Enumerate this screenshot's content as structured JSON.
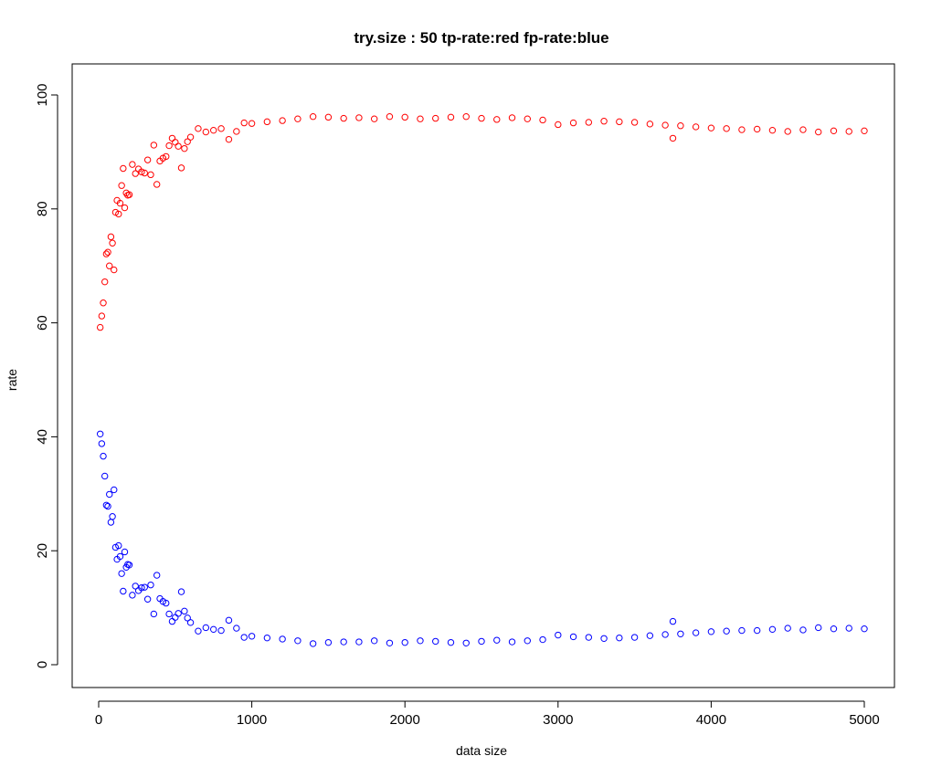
{
  "chart_data": {
    "type": "scatter",
    "title": "try.size :  50  tp-rate:red fp-rate:blue",
    "xlabel": "data size",
    "ylabel": "rate",
    "xlim": [
      0,
      5000
    ],
    "ylim": [
      0,
      100
    ],
    "x_ticks": [
      0,
      1000,
      2000,
      3000,
      4000,
      5000
    ],
    "y_ticks": [
      0,
      20,
      40,
      60,
      80,
      100
    ],
    "grid": false,
    "legend": "none",
    "x": [
      10,
      20,
      30,
      40,
      50,
      60,
      70,
      80,
      90,
      100,
      110,
      120,
      130,
      140,
      150,
      160,
      170,
      180,
      190,
      200,
      220,
      240,
      260,
      280,
      300,
      320,
      340,
      360,
      380,
      400,
      420,
      440,
      460,
      480,
      500,
      520,
      540,
      560,
      580,
      600,
      650,
      700,
      750,
      800,
      850,
      900,
      950,
      1000,
      1100,
      1200,
      1300,
      1400,
      1500,
      1600,
      1700,
      1800,
      1900,
      2000,
      2100,
      2200,
      2300,
      2400,
      2500,
      2600,
      2700,
      2800,
      2900,
      3000,
      3100,
      3200,
      3300,
      3400,
      3500,
      3600,
      3700,
      3750,
      3800,
      3900,
      4000,
      4100,
      4200,
      4300,
      4400,
      4500,
      4600,
      4700,
      4800,
      4900,
      5000
    ],
    "series": [
      {
        "color": "#ff0000",
        "marker": "open-circle",
        "values": [
          59.2,
          61.2,
          63.5,
          67.2,
          72.1,
          72.4,
          70.0,
          75.1,
          74.0,
          69.3,
          79.4,
          81.5,
          79.1,
          81.0,
          84.1,
          87.1,
          80.2,
          82.8,
          82.4,
          82.5,
          87.8,
          86.2,
          87.0,
          86.5,
          86.3,
          88.6,
          86.0,
          91.2,
          84.3,
          88.4,
          88.9,
          89.2,
          91.1,
          92.4,
          91.7,
          91.0,
          87.2,
          90.6,
          91.8,
          92.6,
          94.1,
          93.5,
          93.8,
          94.1,
          92.2,
          93.6,
          95.1,
          95.0,
          95.3,
          95.5,
          95.8,
          96.2,
          96.1,
          95.9,
          96.0,
          95.8,
          96.2,
          96.1,
          95.8,
          95.9,
          96.1,
          96.2,
          95.9,
          95.7,
          96.0,
          95.8,
          95.6,
          94.8,
          95.1,
          95.2,
          95.4,
          95.3,
          95.2,
          94.9,
          94.7,
          92.4,
          94.6,
          94.4,
          94.2,
          94.1,
          93.9,
          94.0,
          93.8,
          93.6,
          93.9,
          93.5,
          93.7,
          93.6,
          93.7
        ]
      },
      {
        "color": "#0000ff",
        "marker": "open-circle",
        "values": [
          40.5,
          38.8,
          36.6,
          33.1,
          28.0,
          27.8,
          29.9,
          25.0,
          26.0,
          30.7,
          20.6,
          18.5,
          20.9,
          19.0,
          16.0,
          12.9,
          19.8,
          17.1,
          17.6,
          17.5,
          12.2,
          13.8,
          13.0,
          13.5,
          13.6,
          11.5,
          14.0,
          8.9,
          15.7,
          11.6,
          11.1,
          10.8,
          8.9,
          7.6,
          8.3,
          9.0,
          12.8,
          9.4,
          8.2,
          7.4,
          5.9,
          6.5,
          6.2,
          6.0,
          7.8,
          6.4,
          4.8,
          5.0,
          4.7,
          4.5,
          4.2,
          3.7,
          3.9,
          4.0,
          4.0,
          4.2,
          3.8,
          3.9,
          4.2,
          4.1,
          3.9,
          3.8,
          4.1,
          4.3,
          4.0,
          4.2,
          4.4,
          5.2,
          4.9,
          4.8,
          4.6,
          4.7,
          4.8,
          5.1,
          5.3,
          7.6,
          5.4,
          5.6,
          5.8,
          5.9,
          6.0,
          6.0,
          6.2,
          6.4,
          6.1,
          6.5,
          6.3,
          6.4,
          6.3
        ]
      }
    ]
  }
}
